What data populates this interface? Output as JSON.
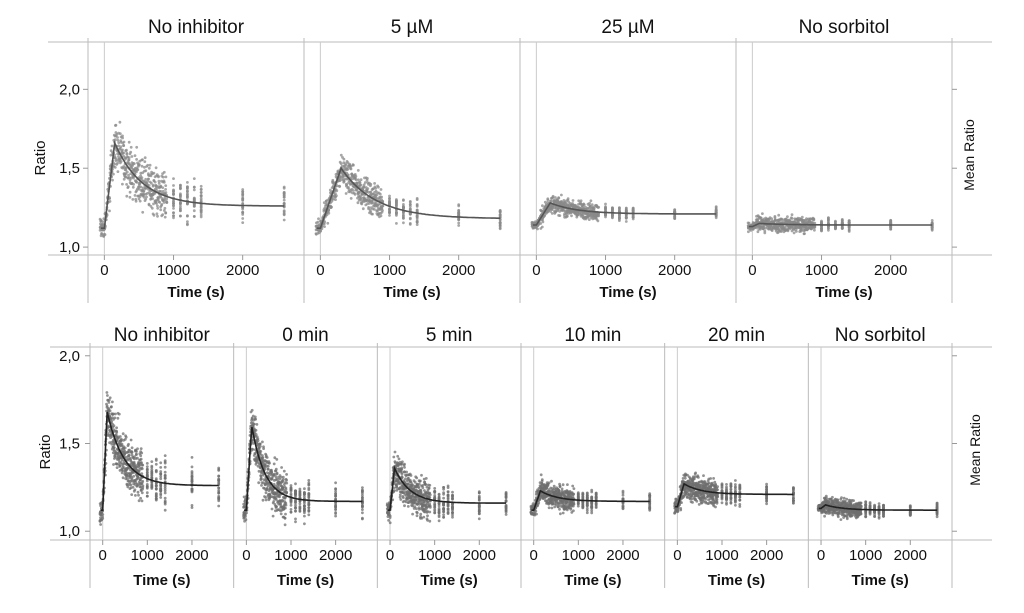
{
  "chart_data": [
    {
      "type": "scatter",
      "row": "top",
      "ylabel": "Ratio",
      "right_label": "Mean Ratio",
      "xlabel": "Time (s)",
      "ylim": [
        0.95,
        2.3
      ],
      "xlim": [
        -150,
        2800
      ],
      "yticks": [
        1.0,
        1.5,
        2.0
      ],
      "ytick_labels": [
        "1,0",
        "1,5",
        "2,0"
      ],
      "xticks": [
        0,
        1000,
        2000
      ],
      "xtick_labels": [
        "0",
        "1000",
        "2000"
      ],
      "grid": false,
      "marker_color": "#8a8a8a",
      "line_color": "#555555",
      "panels": [
        {
          "title": "No inhibitor",
          "peak": 1.66,
          "peak_t": 150,
          "end": 1.26,
          "decay": 400,
          "start": 1.12,
          "spread": 0.22
        },
        {
          "title": "5 µM",
          "peak": 1.5,
          "peak_t": 300,
          "end": 1.18,
          "decay": 500,
          "start": 1.12,
          "spread": 0.14
        },
        {
          "title": "25 µM",
          "peak": 1.28,
          "peak_t": 200,
          "end": 1.21,
          "decay": 400,
          "start": 1.14,
          "spread": 0.08
        },
        {
          "title": "No sorbitol",
          "peak": 1.15,
          "peak_t": 100,
          "end": 1.14,
          "decay": 400,
          "start": 1.13,
          "spread": 0.07
        }
      ]
    },
    {
      "type": "scatter",
      "row": "bottom",
      "ylabel": "Ratio",
      "right_label": "Mean Ratio",
      "xlabel": "Time (s)",
      "ylim": [
        0.95,
        2.05
      ],
      "xlim": [
        -150,
        2800
      ],
      "yticks": [
        1.0,
        1.5,
        2.0
      ],
      "ytick_labels": [
        "1,0",
        "1,5",
        "2,0"
      ],
      "xticks": [
        0,
        1000,
        2000
      ],
      "xtick_labels": [
        "0",
        "1000",
        "2000"
      ],
      "grid": false,
      "marker_color": "#6f6f6f",
      "line_color": "#222222",
      "panels": [
        {
          "title": "No inhibitor",
          "peak": 1.68,
          "peak_t": 100,
          "end": 1.26,
          "decay": 380,
          "start": 1.12,
          "spread": 0.22
        },
        {
          "title": "0 min",
          "peak": 1.6,
          "peak_t": 120,
          "end": 1.17,
          "decay": 300,
          "start": 1.12,
          "spread": 0.2
        },
        {
          "title": "5 min",
          "peak": 1.36,
          "peak_t": 100,
          "end": 1.16,
          "decay": 350,
          "start": 1.12,
          "spread": 0.16
        },
        {
          "title": "10 min",
          "peak": 1.23,
          "peak_t": 150,
          "end": 1.17,
          "decay": 400,
          "start": 1.12,
          "spread": 0.1
        },
        {
          "title": "20 min",
          "peak": 1.27,
          "peak_t": 150,
          "end": 1.21,
          "decay": 400,
          "start": 1.14,
          "spread": 0.11
        },
        {
          "title": "No sorbitol",
          "peak": 1.15,
          "peak_t": 100,
          "end": 1.12,
          "decay": 400,
          "start": 1.13,
          "spread": 0.07
        }
      ]
    }
  ]
}
